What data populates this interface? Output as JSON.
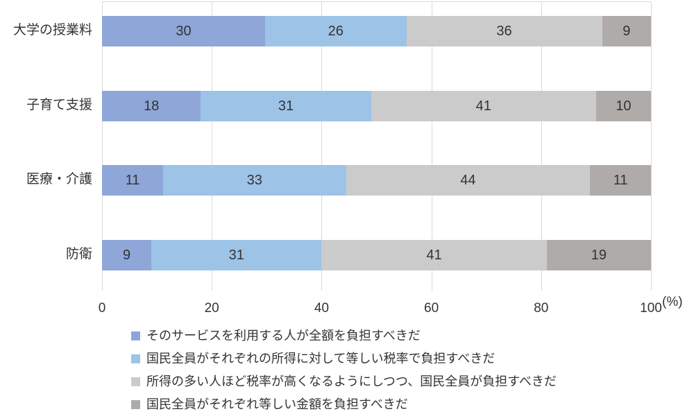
{
  "chart_data": {
    "type": "bar",
    "variant": "horizontal-stacked",
    "title": "",
    "categories": [
      "大学の授業料",
      "子育て支援",
      "医療・介護",
      "防衛"
    ],
    "series": [
      {
        "name": "そのサービスを利用する人が全額を負担すべきだ",
        "color": "#8EA6D8",
        "values": [
          30,
          18,
          11,
          9
        ]
      },
      {
        "name": "国民全員がそれぞれの所得に対して等しい税率で負担すべきだ",
        "color": "#9DC3E6",
        "values": [
          26,
          31,
          33,
          31
        ]
      },
      {
        "name": "所得の多い人ほど税率が高くなるようにしつつ、国民全員が負担すべきだ",
        "color": "#CBCBCB",
        "values": [
          36,
          41,
          44,
          41
        ]
      },
      {
        "name": "国民全員がそれぞれ等しい金額を負担すべきだ",
        "color": "#AFABA9",
        "values": [
          9,
          10,
          11,
          19
        ]
      }
    ],
    "x_axis": {
      "ticks": [
        "0",
        "20",
        "40",
        "60",
        "80",
        "100"
      ],
      "tick_values": [
        0,
        20,
        40,
        60,
        80,
        100
      ],
      "range": [
        0,
        100
      ],
      "unit_label": "(%)"
    },
    "grid": "vertical-gridlines",
    "legend_position": "bottom-left",
    "colors": {
      "gridline": "#D9D9D9",
      "text": "#333333",
      "background": "#FFFFFF"
    }
  }
}
